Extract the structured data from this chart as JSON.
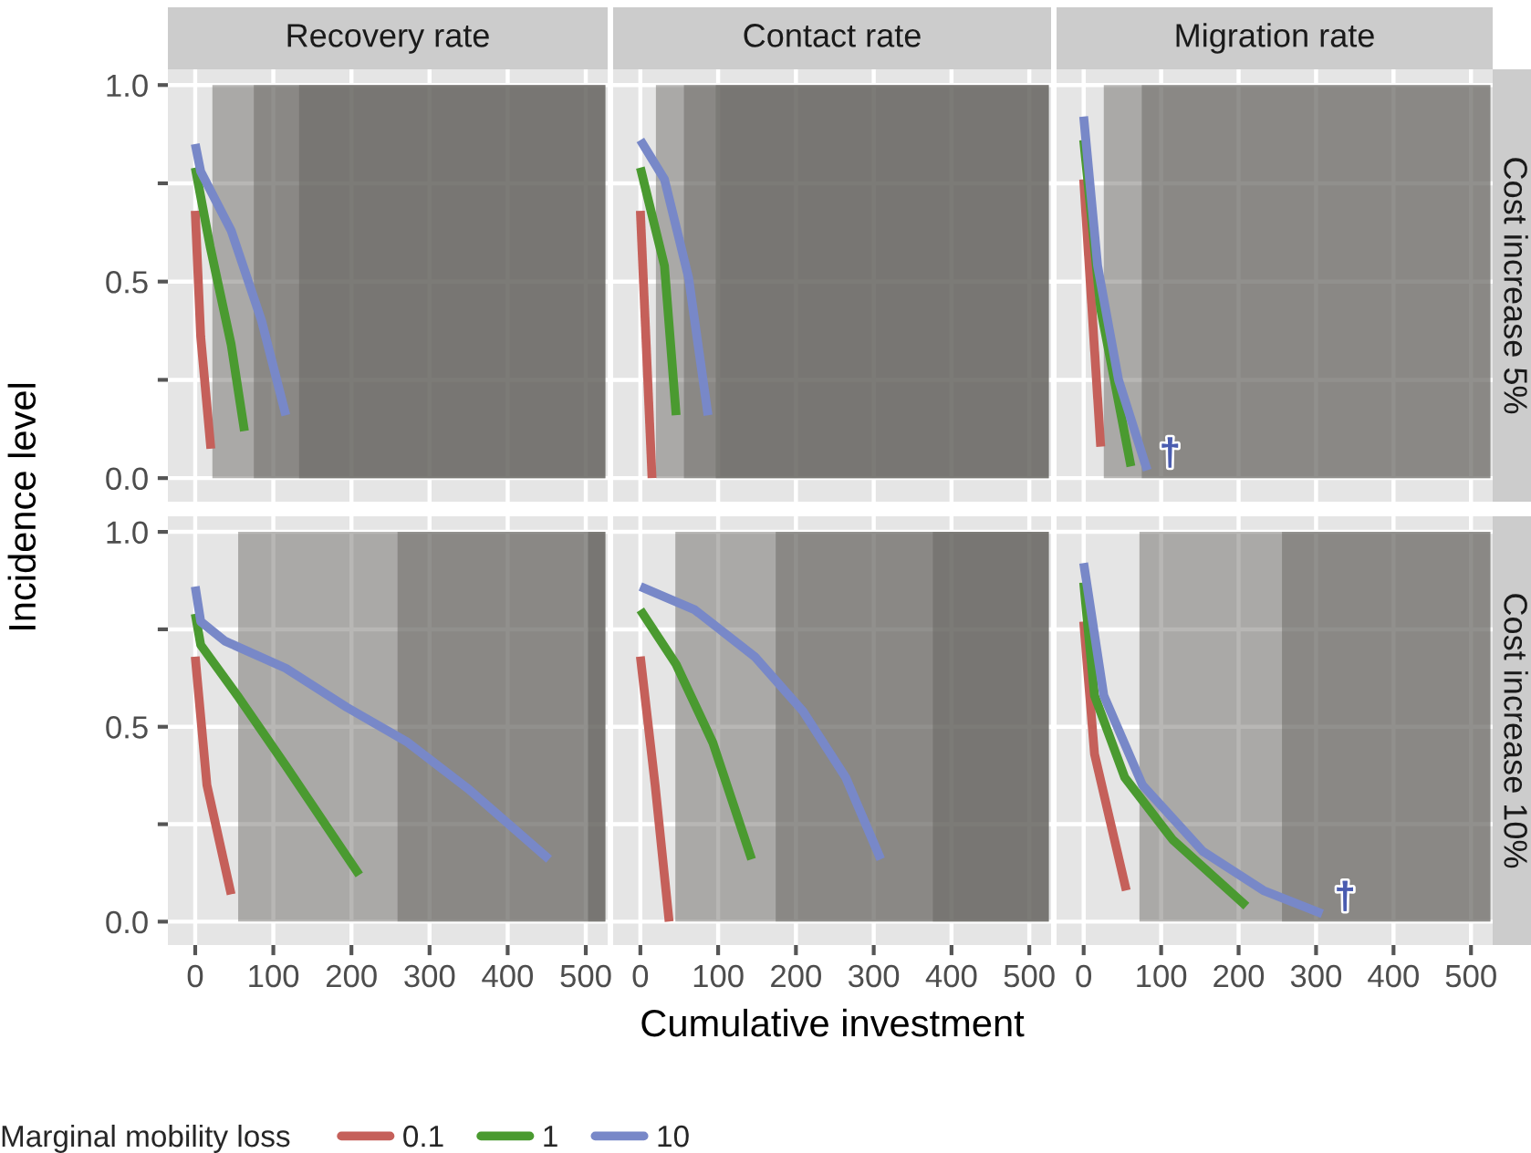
{
  "chart_data": [
    {
      "type": "line",
      "title": "Recovery rate",
      "ylabel": "Incidence level",
      "legend_title": "Marginal mobility loss",
      "legend": "bottom",
      "tick_labels": "y",
      "grid": true,
      "xlim": [
        -35,
        528
      ],
      "xticks": [
        0,
        100,
        200,
        300,
        400,
        500
      ],
      "ylim": [
        -0.06,
        1.04
      ],
      "yticks": [
        {
          "value": 0,
          "label": "0.0"
        },
        {
          "value": 0.25,
          "label": null
        },
        {
          "value": 0.5,
          "label": "0.5"
        },
        {
          "value": 0.75,
          "label": null
        },
        {
          "value": 1,
          "label": "1.0"
        }
      ],
      "bands": [
        {
          "axis": "x",
          "from": 22,
          "to": 525,
          "color": "#65615e"
        },
        {
          "axis": "x",
          "from": 75,
          "to": 525,
          "color": "#65615e"
        },
        {
          "axis": "x",
          "from": 133,
          "to": 525,
          "color": "#65615e"
        }
      ],
      "series": [
        {
          "name": "0.1",
          "color": "#c5605a",
          "x": [
            0,
            7,
            20
          ],
          "values": [
            0.68,
            0.36,
            0.075
          ]
        },
        {
          "name": "1",
          "color": "#4a9a30",
          "x": [
            0,
            19,
            46,
            63
          ],
          "values": [
            0.79,
            0.59,
            0.34,
            0.12
          ]
        },
        {
          "name": "10",
          "color": "#7888c8",
          "x": [
            0,
            7,
            46,
            85,
            116
          ],
          "values": [
            0.85,
            0.78,
            0.63,
            0.4,
            0.16
          ]
        }
      ]
    },
    {
      "type": "line",
      "title": "Contact rate",
      "tick_labels": false,
      "grid": true,
      "xlim": [
        -35,
        528
      ],
      "xticks": [
        0,
        100,
        200,
        300,
        400,
        500
      ],
      "ylim": [
        -0.06,
        1.04
      ],
      "yticks": [
        0,
        0.25,
        0.5,
        0.75,
        1
      ],
      "bands": [
        {
          "axis": "x",
          "from": 20,
          "to": 525,
          "color": "#65615e"
        },
        {
          "axis": "x",
          "from": 56,
          "to": 525,
          "color": "#65615e"
        },
        {
          "axis": "x",
          "from": 97,
          "to": 525,
          "color": "#65615e"
        }
      ],
      "series": [
        {
          "color": "#c5605a",
          "x": [
            0,
            15
          ],
          "values": [
            0.68,
            0.0
          ]
        },
        {
          "color": "#4a9a30",
          "x": [
            0,
            31,
            46
          ],
          "values": [
            0.79,
            0.54,
            0.16
          ]
        },
        {
          "color": "#7888c8",
          "x": [
            0,
            31,
            62,
            87
          ],
          "values": [
            0.86,
            0.76,
            0.51,
            0.16
          ]
        }
      ]
    },
    {
      "type": "line",
      "title": "Migration rate",
      "tick_labels": false,
      "grid": true,
      "annotations": [
        "Cost increase 5%",
        {
          "text": "†",
          "x": 82,
          "y": 0.02
        }
      ],
      "xlim": [
        -35,
        528
      ],
      "xticks": [
        0,
        100,
        200,
        300,
        400,
        500
      ],
      "ylim": [
        -0.06,
        1.04
      ],
      "yticks": [
        0,
        0.25,
        0.5,
        0.75,
        1
      ],
      "bands": [
        {
          "axis": "x",
          "from": 26,
          "to": 525,
          "color": "#65615e"
        },
        {
          "axis": "x",
          "from": 75,
          "to": 525,
          "color": "#65615e"
        }
      ],
      "series": [
        {
          "color": "#c5605a",
          "x": [
            0,
            22
          ],
          "values": [
            0.76,
            0.08
          ]
        },
        {
          "color": "#4a9a30",
          "x": [
            0,
            22,
            61
          ],
          "values": [
            0.86,
            0.43,
            0.03
          ]
        },
        {
          "color": "#7888c8",
          "x": [
            0,
            18,
            45,
            82
          ],
          "values": [
            0.92,
            0.54,
            0.25,
            0.02
          ]
        }
      ]
    },
    {
      "type": "line",
      "grid": true,
      "xlim": [
        -35,
        528
      ],
      "xticks": [
        0,
        100,
        200,
        300,
        400,
        500
      ],
      "ylim": [
        -0.06,
        1.04
      ],
      "yticks": [
        {
          "value": 0,
          "label": "0.0"
        },
        {
          "value": 0.25,
          "label": null
        },
        {
          "value": 0.5,
          "label": "0.5"
        },
        {
          "value": 0.75,
          "label": null
        },
        {
          "value": 1,
          "label": "1.0"
        }
      ],
      "bands": [
        {
          "axis": "x",
          "from": 55,
          "to": 525,
          "color": "#65615e"
        },
        {
          "axis": "x",
          "from": 259,
          "to": 525,
          "color": "#65615e"
        },
        {
          "axis": "x",
          "from": 503,
          "to": 525,
          "color": "#65615e"
        }
      ],
      "series": [
        {
          "color": "#c5605a",
          "x": [
            0,
            15,
            46
          ],
          "values": [
            0.68,
            0.35,
            0.07
          ]
        },
        {
          "color": "#4a9a30",
          "x": [
            0,
            7,
            54,
            116,
            210
          ],
          "values": [
            0.79,
            0.71,
            0.58,
            0.4,
            0.12
          ]
        },
        {
          "color": "#7888c8",
          "x": [
            0,
            7,
            38,
            116,
            194,
            272,
            350,
            453
          ],
          "values": [
            0.86,
            0.77,
            0.72,
            0.65,
            0.55,
            0.46,
            0.34,
            0.16
          ]
        }
      ]
    },
    {
      "type": "line",
      "xlabel": "Cumulative investment",
      "tick_labels": "x",
      "grid": true,
      "xlim": [
        -35,
        528
      ],
      "xticks": [
        0,
        100,
        200,
        300,
        400,
        500
      ],
      "ylim": [
        -0.06,
        1.04
      ],
      "yticks": [
        0,
        0.25,
        0.5,
        0.75,
        1
      ],
      "bands": [
        {
          "axis": "x",
          "from": 45,
          "to": 525,
          "color": "#65615e"
        },
        {
          "axis": "x",
          "from": 174,
          "to": 525,
          "color": "#65615e"
        },
        {
          "axis": "x",
          "from": 376,
          "to": 525,
          "color": "#65615e"
        }
      ],
      "series": [
        {
          "color": "#c5605a",
          "x": [
            0,
            19,
            37
          ],
          "values": [
            0.68,
            0.35,
            0.0
          ]
        },
        {
          "color": "#4a9a30",
          "x": [
            0,
            46,
            93,
            143
          ],
          "values": [
            0.8,
            0.66,
            0.46,
            0.16
          ]
        },
        {
          "color": "#7888c8",
          "x": [
            0,
            70,
            147,
            209,
            264,
            309
          ],
          "values": [
            0.86,
            0.8,
            0.68,
            0.54,
            0.37,
            0.16
          ]
        }
      ]
    },
    {
      "type": "line",
      "tick_labels": "x",
      "grid": true,
      "annotations": [
        "Cost increase 10%",
        {
          "text": "†",
          "x": 308,
          "y": 0.02
        }
      ],
      "xlim": [
        -35,
        528
      ],
      "xticks": [
        0,
        100,
        200,
        300,
        400,
        500
      ],
      "ylim": [
        -0.06,
        1.04
      ],
      "yticks": [
        0,
        0.25,
        0.5,
        0.75,
        1
      ],
      "bands": [
        {
          "axis": "x",
          "from": 72,
          "to": 525,
          "color": "#65615e"
        },
        {
          "axis": "x",
          "from": 256,
          "to": 525,
          "color": "#65615e"
        }
      ],
      "series": [
        {
          "color": "#c5605a",
          "x": [
            0,
            14,
            55
          ],
          "values": [
            0.77,
            0.43,
            0.08
          ]
        },
        {
          "color": "#4a9a30",
          "x": [
            0,
            14,
            53,
            115,
            210
          ],
          "values": [
            0.87,
            0.58,
            0.37,
            0.21,
            0.04
          ]
        },
        {
          "color": "#7888c8",
          "x": [
            0,
            26,
            76,
            154,
            232,
            308
          ],
          "values": [
            0.92,
            0.58,
            0.35,
            0.18,
            0.08,
            0.02
          ]
        }
      ]
    }
  ]
}
